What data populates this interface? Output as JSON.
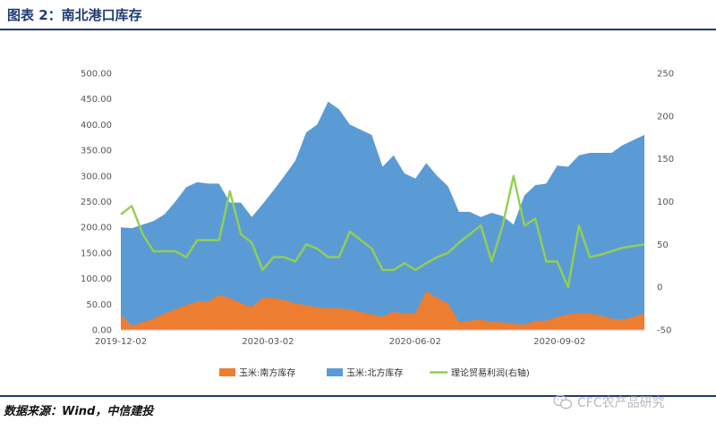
{
  "header": {
    "title": "图表 2：南北港口库存"
  },
  "footer": {
    "source": "数据来源：Wind，中信建投",
    "watermark": "CFC农产品研究"
  },
  "chart_data": {
    "type": "area",
    "x_tick_labels": [
      "2019-12-02",
      "2020-03-02",
      "2020-06-02",
      "2020-09-02"
    ],
    "y_left": {
      "ylim": [
        0,
        500
      ],
      "ticks": [
        "0.00",
        "50.00",
        "100.00",
        "150.00",
        "200.00",
        "250.00",
        "300.00",
        "350.00",
        "400.00",
        "450.00",
        "500.00"
      ]
    },
    "y_right": {
      "ylim": [
        -50,
        250
      ],
      "ticks": [
        "-50",
        "0",
        "50",
        "100",
        "150",
        "200",
        "250"
      ]
    },
    "grid": false,
    "legend_position": "bottom",
    "series": [
      {
        "name": "玉米:南方库存",
        "axis": "left",
        "kind": "area",
        "color": "#ed7d31",
        "values": [
          30,
          8,
          15,
          22,
          32,
          40,
          48,
          55,
          55,
          68,
          62,
          52,
          45,
          62,
          62,
          58,
          52,
          48,
          44,
          42,
          42,
          40,
          35,
          30,
          26,
          35,
          32,
          32,
          75,
          62,
          52,
          15,
          18,
          20,
          15,
          15,
          12,
          10,
          18,
          18,
          25,
          30,
          32,
          32,
          28,
          22,
          20,
          25,
          32
        ]
      },
      {
        "name": "玉米:北方库存",
        "axis": "left",
        "kind": "area",
        "color": "#5b9bd5",
        "values": [
          200,
          198,
          205,
          212,
          225,
          250,
          278,
          288,
          285,
          285,
          248,
          248,
          220,
          245,
          272,
          300,
          330,
          385,
          400,
          445,
          430,
          400,
          390,
          380,
          318,
          340,
          305,
          295,
          325,
          300,
          280,
          230,
          230,
          220,
          228,
          222,
          205,
          262,
          282,
          285,
          320,
          318,
          340,
          345,
          345,
          345,
          360,
          370,
          380
        ]
      },
      {
        "name": "理论贸易利润(右轴)",
        "axis": "right",
        "kind": "line",
        "color": "#92d050",
        "values": [
          85,
          95,
          62,
          42,
          42,
          42,
          35,
          55,
          55,
          55,
          112,
          62,
          52,
          20,
          35,
          35,
          30,
          50,
          45,
          35,
          35,
          65,
          55,
          45,
          20,
          20,
          28,
          20,
          28,
          35,
          40,
          52,
          62,
          72,
          30,
          72,
          130,
          72,
          80,
          30,
          30,
          0,
          72,
          35,
          38,
          42,
          46,
          48,
          50
        ]
      }
    ]
  }
}
